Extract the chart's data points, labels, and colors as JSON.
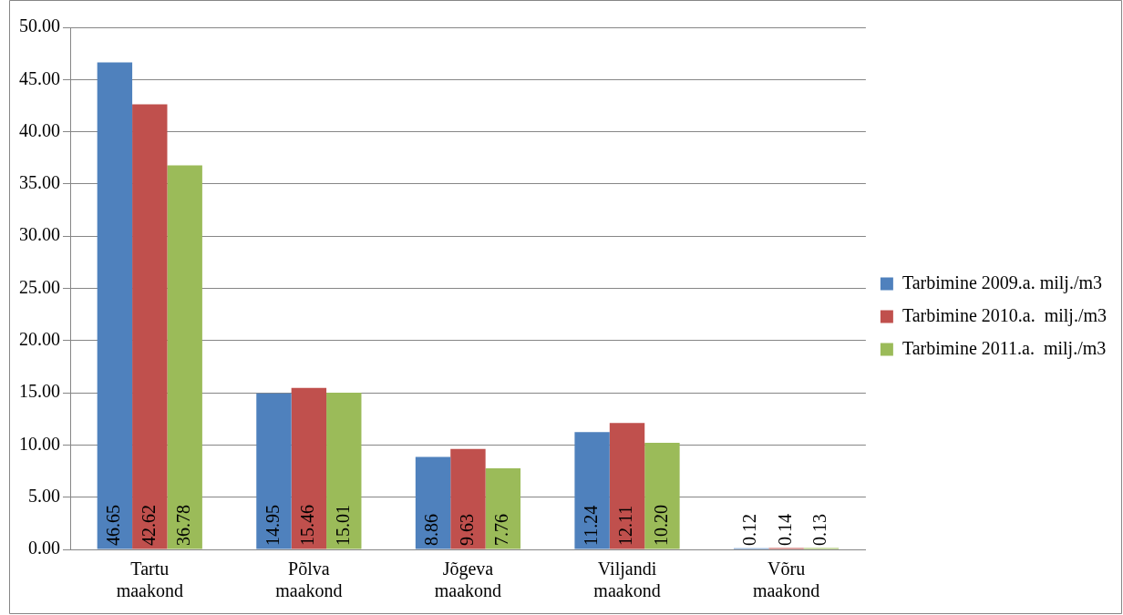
{
  "chart_data": {
    "type": "bar",
    "categories": [
      "Tartu maakond",
      "Põlva maakond",
      "Jõgeva maakond",
      "Viljandi maakond",
      "Võru maakond"
    ],
    "series": [
      {
        "name": "Tarbimine 2009.a. milj./m3",
        "color": "#4f81bd",
        "values": [
          46.65,
          14.95,
          8.86,
          11.24,
          0.12
        ],
        "value_labels": [
          "46.65",
          "14.95",
          "8.86",
          "11.24",
          "0.12"
        ]
      },
      {
        "name": "Tarbimine 2010.a.  milj./m3",
        "color": "#c0504d",
        "values": [
          42.62,
          15.46,
          9.63,
          12.11,
          0.14
        ],
        "value_labels": [
          "42.62",
          "15.46",
          "9.63",
          "12.11",
          "0.14"
        ]
      },
      {
        "name": "Tarbimine 2011.a.  milj./m3",
        "color": "#9bbb59",
        "values": [
          36.78,
          15.01,
          7.76,
          10.2,
          0.13
        ],
        "value_labels": [
          "36.78",
          "15.01",
          "7.76",
          "10.20",
          "0.13"
        ]
      }
    ],
    "ylim": [
      0,
      50
    ],
    "yticks": [
      {
        "value": 0,
        "label": "0.00"
      },
      {
        "value": 5,
        "label": "5.00"
      },
      {
        "value": 10,
        "label": "10.00"
      },
      {
        "value": 15,
        "label": "15.00"
      },
      {
        "value": 20,
        "label": "20.00"
      },
      {
        "value": 25,
        "label": "25.00"
      },
      {
        "value": 30,
        "label": "30.00"
      },
      {
        "value": 35,
        "label": "35.00"
      },
      {
        "value": 40,
        "label": "40.00"
      },
      {
        "value": 45,
        "label": "45.00"
      },
      {
        "value": 50,
        "label": "50.00"
      }
    ],
    "grid": "y",
    "legend": "right"
  }
}
